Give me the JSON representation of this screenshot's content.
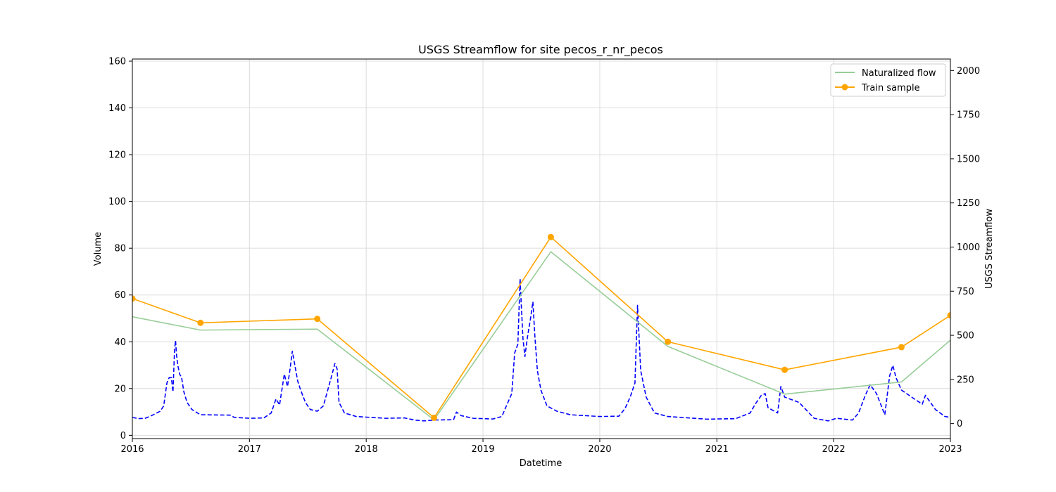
{
  "chart_data": {
    "type": "line",
    "title": "USGS Streamflow for site pecos_r_nr_pecos",
    "xlabel": "Datetime",
    "ylabel_left": "Volume",
    "ylabel_right": "USGS Streamflow",
    "x_ticks": [
      "2016",
      "2017",
      "2018",
      "2019",
      "2020",
      "2021",
      "2022",
      "2023"
    ],
    "x_range": [
      "2016-01-01",
      "2023-01-01"
    ],
    "y_left_range": [
      -1.4,
      160.9
    ],
    "y_left_ticks": [
      0,
      20,
      40,
      60,
      80,
      100,
      120,
      140,
      160
    ],
    "y_right_range": [
      -85,
      2065
    ],
    "y_right_ticks": [
      0,
      250,
      500,
      750,
      1000,
      1250,
      1500,
      1750,
      2000
    ],
    "grid": true,
    "legend_position": "top-right",
    "series": [
      {
        "name": "Naturalized flow",
        "axis": "left",
        "color": "#98cd98",
        "points": [
          [
            "2016-01-01",
            50.7
          ],
          [
            "2016-08-01",
            45.0
          ],
          [
            "2017-08-01",
            45.4
          ],
          [
            "2018-08-01",
            6.6
          ],
          [
            "2019-08-01",
            78.5
          ],
          [
            "2020-08-01",
            38.0
          ],
          [
            "2021-08-01",
            17.6
          ],
          [
            "2022-08-01",
            22.8
          ],
          [
            "2023-01-01",
            40.7
          ]
        ]
      },
      {
        "name": "Train sample",
        "axis": "left",
        "color": "#ffa500",
        "marker": "circle",
        "points": [
          [
            "2016-01-01",
            58.5
          ],
          [
            "2016-08-01",
            48.1
          ],
          [
            "2017-08-01",
            49.8
          ],
          [
            "2018-08-01",
            7.5
          ],
          [
            "2019-08-01",
            84.8
          ],
          [
            "2020-08-01",
            40.0
          ],
          [
            "2021-08-01",
            28.0
          ],
          [
            "2022-08-01",
            37.7
          ],
          [
            "2023-01-01",
            51.3
          ]
        ]
      },
      {
        "name": "",
        "axis": "right",
        "color": "#0000ff",
        "style": "dashed",
        "points": [
          [
            "2016-01-01",
            35
          ],
          [
            "2016-01-20",
            28
          ],
          [
            "2016-02-10",
            30
          ],
          [
            "2016-03-01",
            45
          ],
          [
            "2016-03-15",
            58
          ],
          [
            "2016-03-28",
            70
          ],
          [
            "2016-04-08",
            100
          ],
          [
            "2016-04-18",
            230
          ],
          [
            "2016-04-25",
            260
          ],
          [
            "2016-05-02",
            260
          ],
          [
            "2016-05-07",
            180
          ],
          [
            "2016-05-12",
            420
          ],
          [
            "2016-05-15",
            470
          ],
          [
            "2016-05-18",
            390
          ],
          [
            "2016-05-22",
            330
          ],
          [
            "2016-05-28",
            280
          ],
          [
            "2016-06-03",
            260
          ],
          [
            "2016-06-10",
            180
          ],
          [
            "2016-06-20",
            120
          ],
          [
            "2016-07-05",
            80
          ],
          [
            "2016-08-01",
            50
          ],
          [
            "2016-11-01",
            48
          ],
          [
            "2016-11-15",
            35
          ],
          [
            "2017-01-01",
            30
          ],
          [
            "2017-02-15",
            32
          ],
          [
            "2017-03-10",
            60
          ],
          [
            "2017-03-25",
            140
          ],
          [
            "2017-04-05",
            105
          ],
          [
            "2017-04-20",
            280
          ],
          [
            "2017-04-30",
            210
          ],
          [
            "2017-05-08",
            310
          ],
          [
            "2017-05-15",
            410
          ],
          [
            "2017-05-22",
            340
          ],
          [
            "2017-06-01",
            240
          ],
          [
            "2017-06-10",
            190
          ],
          [
            "2017-06-25",
            120
          ],
          [
            "2017-07-10",
            80
          ],
          [
            "2017-08-01",
            70
          ],
          [
            "2017-08-20",
            100
          ],
          [
            "2017-09-15",
            270
          ],
          [
            "2017-09-25",
            340
          ],
          [
            "2017-10-02",
            310
          ],
          [
            "2017-10-08",
            120
          ],
          [
            "2017-10-25",
            60
          ],
          [
            "2017-12-01",
            40
          ],
          [
            "2018-03-01",
            30
          ],
          [
            "2018-05-01",
            32
          ],
          [
            "2018-06-01",
            20
          ],
          [
            "2018-07-01",
            15
          ],
          [
            "2018-08-01",
            20
          ],
          [
            "2018-10-01",
            22
          ],
          [
            "2018-10-10",
            65
          ],
          [
            "2018-10-25",
            45
          ],
          [
            "2018-12-01",
            30
          ],
          [
            "2019-02-01",
            26
          ],
          [
            "2019-03-01",
            40
          ],
          [
            "2019-03-15",
            100
          ],
          [
            "2019-04-01",
            170
          ],
          [
            "2019-04-10",
            400
          ],
          [
            "2019-04-20",
            450
          ],
          [
            "2019-04-27",
            820
          ],
          [
            "2019-05-01",
            660
          ],
          [
            "2019-05-06",
            480
          ],
          [
            "2019-05-12",
            380
          ],
          [
            "2019-05-20",
            490
          ],
          [
            "2019-05-30",
            600
          ],
          [
            "2019-06-06",
            690
          ],
          [
            "2019-06-12",
            500
          ],
          [
            "2019-06-20",
            300
          ],
          [
            "2019-07-01",
            190
          ],
          [
            "2019-07-20",
            100
          ],
          [
            "2019-08-20",
            70
          ],
          [
            "2019-10-01",
            50
          ],
          [
            "2020-01-01",
            40
          ],
          [
            "2020-03-01",
            42
          ],
          [
            "2020-03-20",
            85
          ],
          [
            "2020-04-05",
            150
          ],
          [
            "2020-04-20",
            230
          ],
          [
            "2020-04-28",
            670
          ],
          [
            "2020-05-08",
            300
          ],
          [
            "2020-05-25",
            150
          ],
          [
            "2020-06-20",
            60
          ],
          [
            "2020-08-01",
            40
          ],
          [
            "2020-12-01",
            25
          ],
          [
            "2021-03-01",
            28
          ],
          [
            "2021-04-15",
            60
          ],
          [
            "2021-05-01",
            110
          ],
          [
            "2021-05-20",
            160
          ],
          [
            "2021-06-01",
            170
          ],
          [
            "2021-06-10",
            90
          ],
          [
            "2021-07-10",
            60
          ],
          [
            "2021-07-20",
            210
          ],
          [
            "2021-08-01",
            150
          ],
          [
            "2021-09-15",
            120
          ],
          [
            "2021-11-01",
            30
          ],
          [
            "2021-12-15",
            15
          ],
          [
            "2022-01-10",
            30
          ],
          [
            "2022-03-01",
            20
          ],
          [
            "2022-03-20",
            60
          ],
          [
            "2022-04-10",
            160
          ],
          [
            "2022-04-25",
            220
          ],
          [
            "2022-05-15",
            170
          ],
          [
            "2022-06-10",
            50
          ],
          [
            "2022-06-25",
            270
          ],
          [
            "2022-07-05",
            330
          ],
          [
            "2022-07-15",
            260
          ],
          [
            "2022-08-01",
            190
          ],
          [
            "2022-09-10",
            140
          ],
          [
            "2022-10-05",
            110
          ],
          [
            "2022-10-15",
            160
          ],
          [
            "2022-11-15",
            80
          ],
          [
            "2022-12-15",
            40
          ],
          [
            "2023-01-01",
            35
          ]
        ]
      }
    ]
  }
}
